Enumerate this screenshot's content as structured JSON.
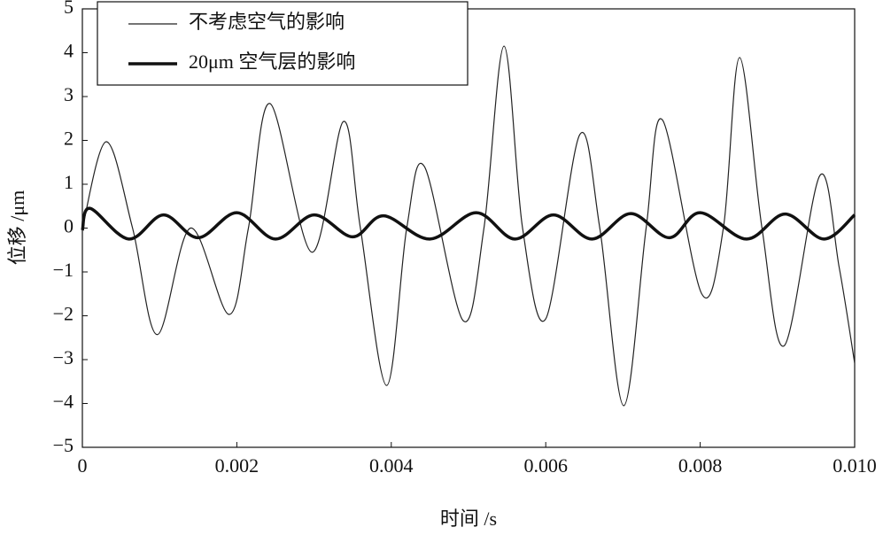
{
  "chart_data": {
    "type": "line",
    "x_label": "时间 /s",
    "y_label": "位移 /μm",
    "xlim": [
      0,
      0.01
    ],
    "ylim": [
      -5,
      5
    ],
    "xticks": [
      0,
      0.002,
      0.004,
      0.006,
      0.008,
      {
        "value": 0.01,
        "label": "0.010"
      }
    ],
    "yticks": [
      {
        "value": -5,
        "label": "−5"
      },
      {
        "value": -4,
        "label": "−4"
      },
      {
        "value": -3,
        "label": "−3"
      },
      {
        "value": -2,
        "label": "−2"
      },
      {
        "value": -1,
        "label": "−1"
      },
      0,
      1,
      2,
      3,
      4,
      5
    ],
    "grid": false,
    "legend": "upper left",
    "series": [
      {
        "name": "不考虑空气的影响",
        "color": "#222222",
        "width": 1.2,
        "x": [
          0,
          0.00031,
          0.00065,
          0.00097,
          0.0014,
          0.0019,
          0.00215,
          0.00243,
          0.00297,
          0.00338,
          0.0036,
          0.00394,
          0.0042,
          0.00443,
          0.00493,
          0.0052,
          0.00546,
          0.0057,
          0.006,
          0.00644,
          0.0067,
          0.00701,
          0.0073,
          0.00751,
          0.00802,
          0.0083,
          0.00851,
          0.0088,
          0.00909,
          0.00955,
          0.0098,
          0.01
        ],
        "values": [
          0,
          1.97,
          0,
          -2.43,
          0,
          -1.97,
          0,
          2.84,
          -0.55,
          2.43,
          0,
          -3.59,
          0,
          1.4,
          -2.11,
          0,
          4.15,
          0,
          -2.07,
          2.13,
          0,
          -4.05,
          0,
          2.47,
          -1.5,
          0,
          3.89,
          0,
          -2.68,
          1.2,
          -0.9,
          -3.08
        ]
      },
      {
        "name": "20μm 空气层的影响",
        "color": "#111111",
        "width": 3.5,
        "x": [
          0,
          0.0001,
          0.0006,
          0.00105,
          0.0015,
          0.002,
          0.0025,
          0.003,
          0.0035,
          0.0039,
          0.0045,
          0.0051,
          0.0056,
          0.0061,
          0.0066,
          0.0071,
          0.0076,
          0.008,
          0.0086,
          0.0091,
          0.0096,
          0.01
        ],
        "values": [
          -0.05,
          0.45,
          -0.25,
          0.3,
          -0.22,
          0.35,
          -0.25,
          0.3,
          -0.2,
          0.28,
          -0.25,
          0.35,
          -0.25,
          0.3,
          -0.25,
          0.33,
          -0.22,
          0.35,
          -0.25,
          0.32,
          -0.25,
          0.3
        ]
      }
    ]
  }
}
